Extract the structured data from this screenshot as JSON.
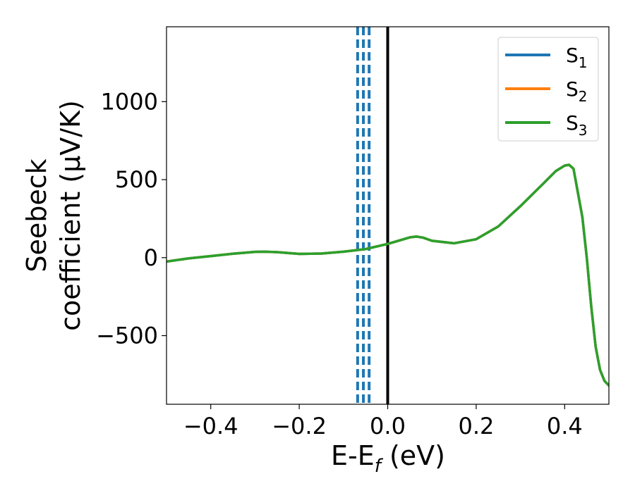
{
  "chart_data": {
    "type": "line",
    "title": "",
    "xlabel": {
      "main": "E-E",
      "sub": "f",
      "tail": " (eV)"
    },
    "ylabel": {
      "line1": "Seebeck",
      "line2": "coefficient  (μV/K)"
    },
    "xlim": [
      -0.5,
      0.5
    ],
    "ylim": [
      -940,
      1480
    ],
    "xticks": [
      {
        "value": -0.4,
        "label": "−0.4"
      },
      {
        "value": -0.2,
        "label": "−0.2"
      },
      {
        "value": 0.0,
        "label": "0.0"
      },
      {
        "value": 0.2,
        "label": "0.2"
      },
      {
        "value": 0.4,
        "label": "0.4"
      }
    ],
    "yticks": [
      {
        "value": -500,
        "label": "−500"
      },
      {
        "value": 0,
        "label": "0"
      },
      {
        "value": 500,
        "label": "500"
      },
      {
        "value": 1000,
        "label": "1000"
      }
    ],
    "grid": false,
    "legend_position": "top-right",
    "series": [
      {
        "name": "S",
        "sub": "1",
        "color": "#1f77b4",
        "x": [
          -0.5,
          -0.45,
          -0.4,
          -0.35,
          -0.3,
          -0.28,
          -0.25,
          -0.2,
          -0.15,
          -0.1,
          -0.05,
          0.0,
          0.05,
          0.065,
          0.08,
          0.1,
          0.15,
          0.2,
          0.25,
          0.3,
          0.35,
          0.38,
          0.4,
          0.41,
          0.42,
          0.44,
          0.45,
          0.46,
          0.47,
          0.48,
          0.49,
          0.5
        ],
        "y": [
          -25,
          -5,
          10,
          25,
          37,
          38,
          35,
          24,
          26,
          38,
          55,
          88,
          130,
          135,
          128,
          108,
          92,
          118,
          200,
          330,
          470,
          555,
          590,
          595,
          570,
          260,
          0,
          -310,
          -570,
          -720,
          -790,
          -820
        ]
      },
      {
        "name": "S",
        "sub": "2",
        "color": "#ff7f0e",
        "x": [
          -0.5,
          -0.45,
          -0.4,
          -0.35,
          -0.3,
          -0.28,
          -0.25,
          -0.2,
          -0.15,
          -0.1,
          -0.05,
          0.0,
          0.05,
          0.065,
          0.08,
          0.1,
          0.15,
          0.2,
          0.25,
          0.3,
          0.35,
          0.38,
          0.4,
          0.41,
          0.42,
          0.44,
          0.45,
          0.46,
          0.47,
          0.48,
          0.49,
          0.5
        ],
        "y": [
          -25,
          -5,
          10,
          25,
          37,
          38,
          35,
          24,
          26,
          38,
          55,
          88,
          130,
          135,
          128,
          108,
          92,
          118,
          200,
          330,
          470,
          555,
          590,
          595,
          570,
          260,
          0,
          -310,
          -570,
          -720,
          -790,
          -820
        ]
      },
      {
        "name": "S",
        "sub": "3",
        "color": "#2ca02c",
        "x": [
          -0.5,
          -0.45,
          -0.4,
          -0.35,
          -0.3,
          -0.28,
          -0.25,
          -0.2,
          -0.15,
          -0.1,
          -0.05,
          0.0,
          0.05,
          0.065,
          0.08,
          0.1,
          0.15,
          0.2,
          0.25,
          0.3,
          0.35,
          0.38,
          0.4,
          0.41,
          0.42,
          0.44,
          0.45,
          0.46,
          0.47,
          0.48,
          0.49,
          0.5
        ],
        "y": [
          -25,
          -5,
          10,
          25,
          37,
          38,
          35,
          24,
          26,
          38,
          55,
          88,
          130,
          135,
          128,
          108,
          92,
          118,
          200,
          330,
          470,
          555,
          590,
          595,
          570,
          260,
          0,
          -310,
          -570,
          -720,
          -790,
          -820
        ]
      }
    ],
    "vlines": [
      {
        "x": -0.068,
        "color": "#1f77b4",
        "style": "dashed"
      },
      {
        "x": -0.055,
        "color": "#1f77b4",
        "style": "dashed"
      },
      {
        "x": -0.042,
        "color": "#1f77b4",
        "style": "dashed"
      },
      {
        "x": 0.0,
        "color": "#000000",
        "style": "solid"
      }
    ]
  }
}
